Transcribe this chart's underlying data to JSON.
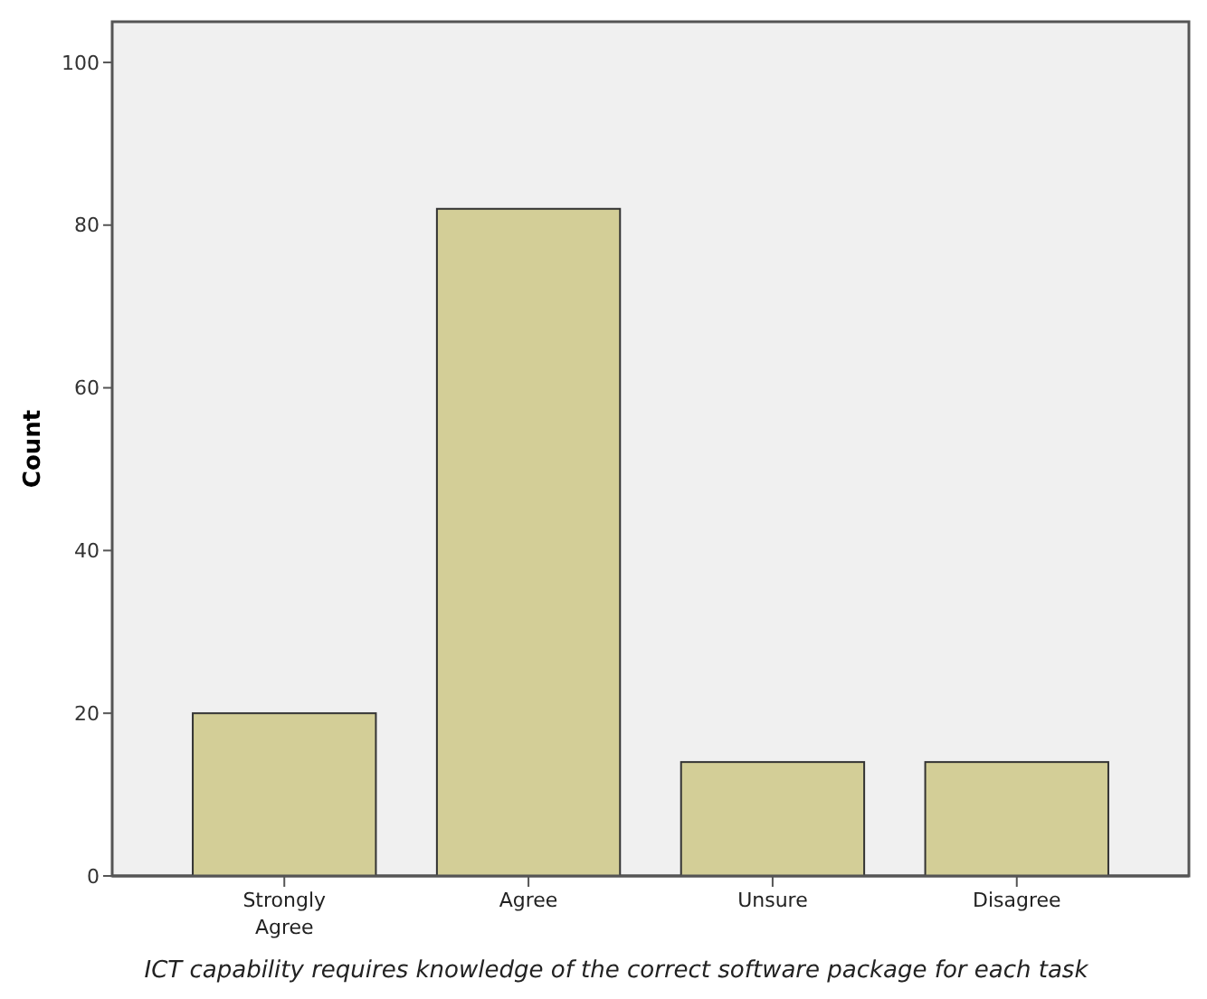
{
  "chart_data": {
    "type": "bar",
    "xlabel": "ICT capability requires knowledge of the correct software package for each task",
    "ylabel": "Count",
    "categories": [
      "Strongly Agree",
      "Agree",
      "Unsure",
      "Disagree"
    ],
    "values": [
      20,
      82,
      14,
      14
    ],
    "color": "#d3ce97",
    "ylim": [
      0,
      105
    ],
    "yticks": [
      0,
      20,
      40,
      60,
      80,
      100
    ],
    "grid": false
  }
}
